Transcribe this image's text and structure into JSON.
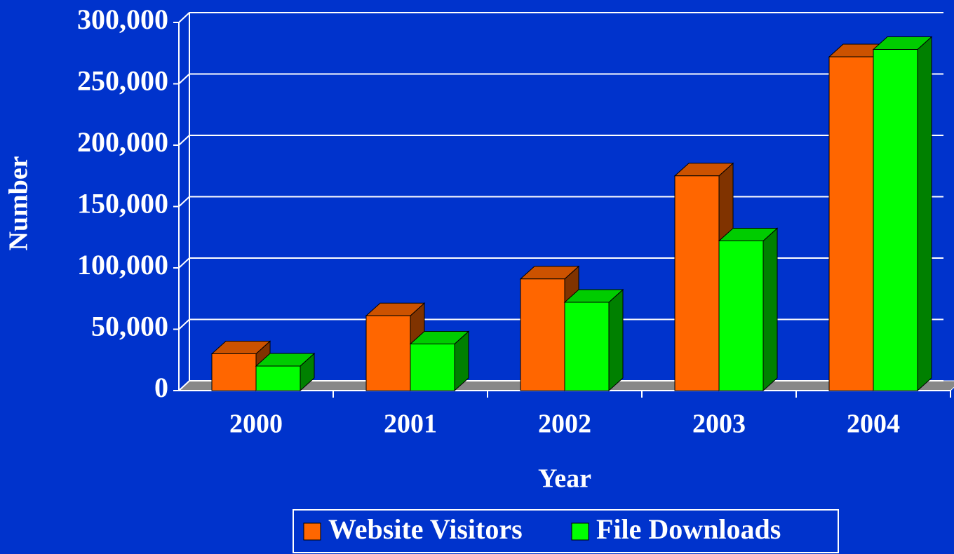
{
  "chart_data": {
    "type": "bar3d",
    "x_label": "Year",
    "y_label": "Number",
    "categories": [
      "2000",
      "2001",
      "2002",
      "2003",
      "2004"
    ],
    "series": [
      {
        "name": "Website Visitors",
        "color": "#ff6600",
        "values": [
          30000,
          61000,
          91000,
          175000,
          272000
        ]
      },
      {
        "name": "File Downloads",
        "color": "#00ff00",
        "values": [
          20000,
          38000,
          72000,
          122000,
          278000
        ]
      }
    ],
    "ylim": [
      0,
      300000
    ],
    "yticks": [
      0,
      {
        "value": 50000,
        "label": "50,000"
      },
      {
        "value": 100000,
        "label": "100,000"
      },
      {
        "value": 150000,
        "label": "150,000"
      },
      {
        "value": 200000,
        "label": "200,000"
      },
      {
        "value": 250000,
        "label": "250,000"
      },
      {
        "value": 300000,
        "label": "300,000"
      }
    ],
    "grid": true,
    "legend": "bottom"
  }
}
